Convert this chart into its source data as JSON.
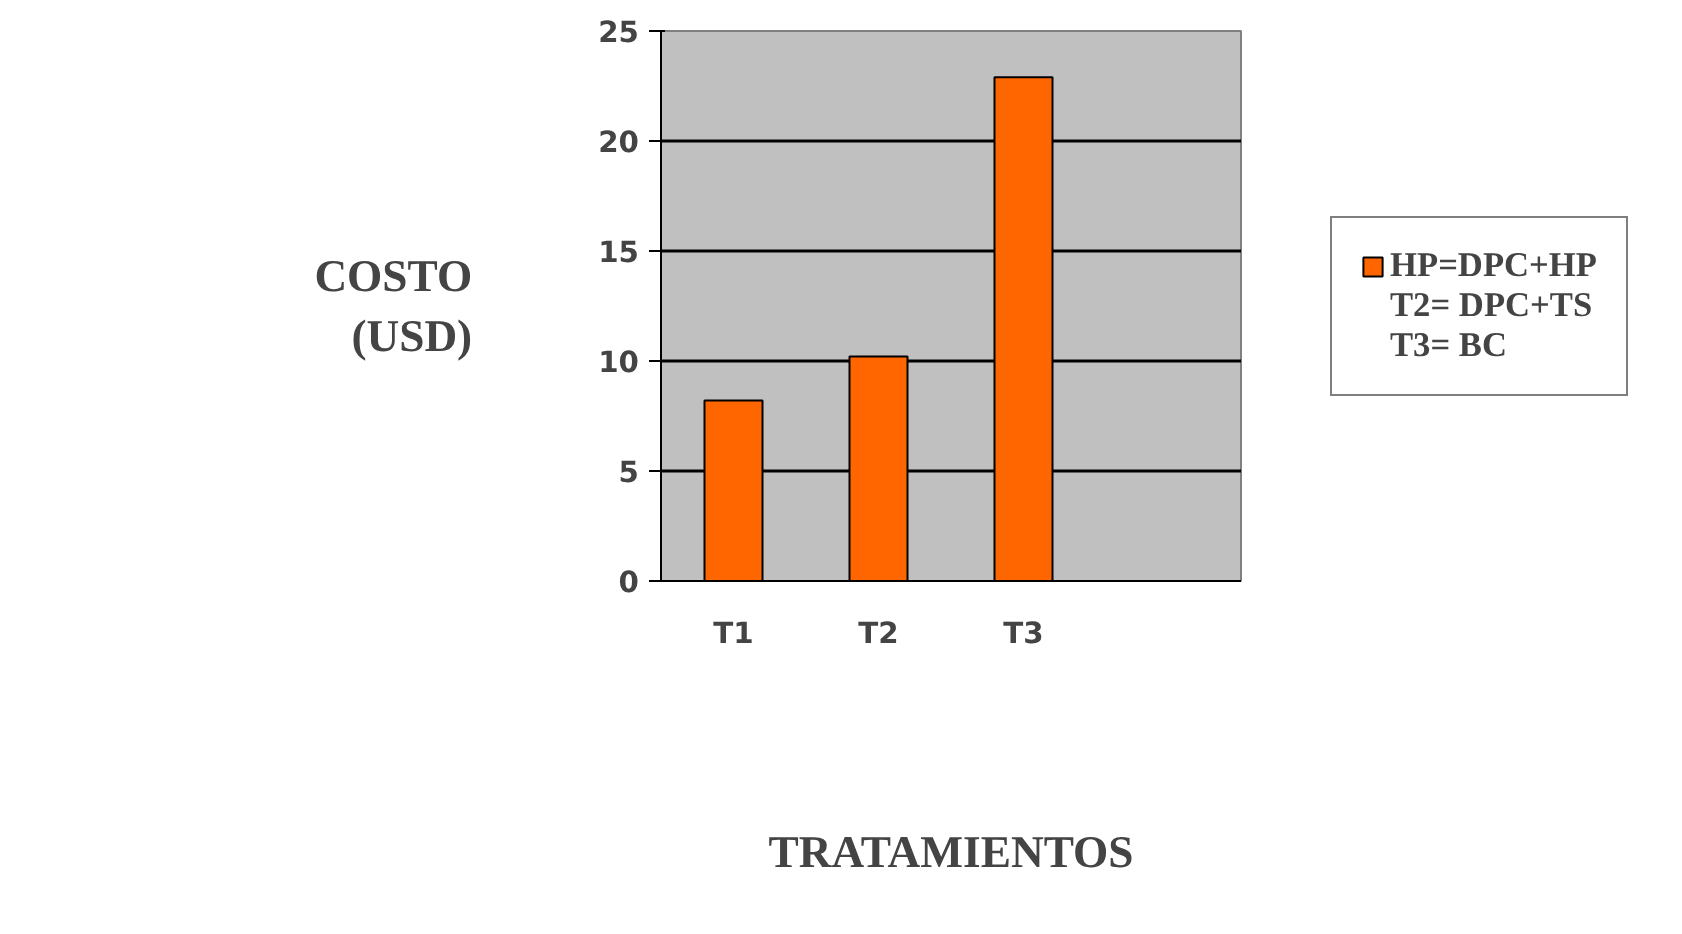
{
  "chart_data": {
    "type": "bar",
    "xlabel": "TRATAMIENTOS",
    "ylabel": "COSTO\n(USD)",
    "categories": [
      "T1",
      "T2",
      "T3",
      null
    ],
    "series": [
      {
        "name": "HP=DPC+HP",
        "color": "#ff6600",
        "values": [
          8.2,
          10.2,
          22.9,
          null
        ]
      }
    ],
    "annotations": [
      "T2= DPC+TS",
      "T3= BC"
    ],
    "ylim": [
      0,
      25
    ],
    "yticks": [
      0,
      5,
      10,
      15,
      20,
      25
    ],
    "grid": "y",
    "legend": "right"
  }
}
